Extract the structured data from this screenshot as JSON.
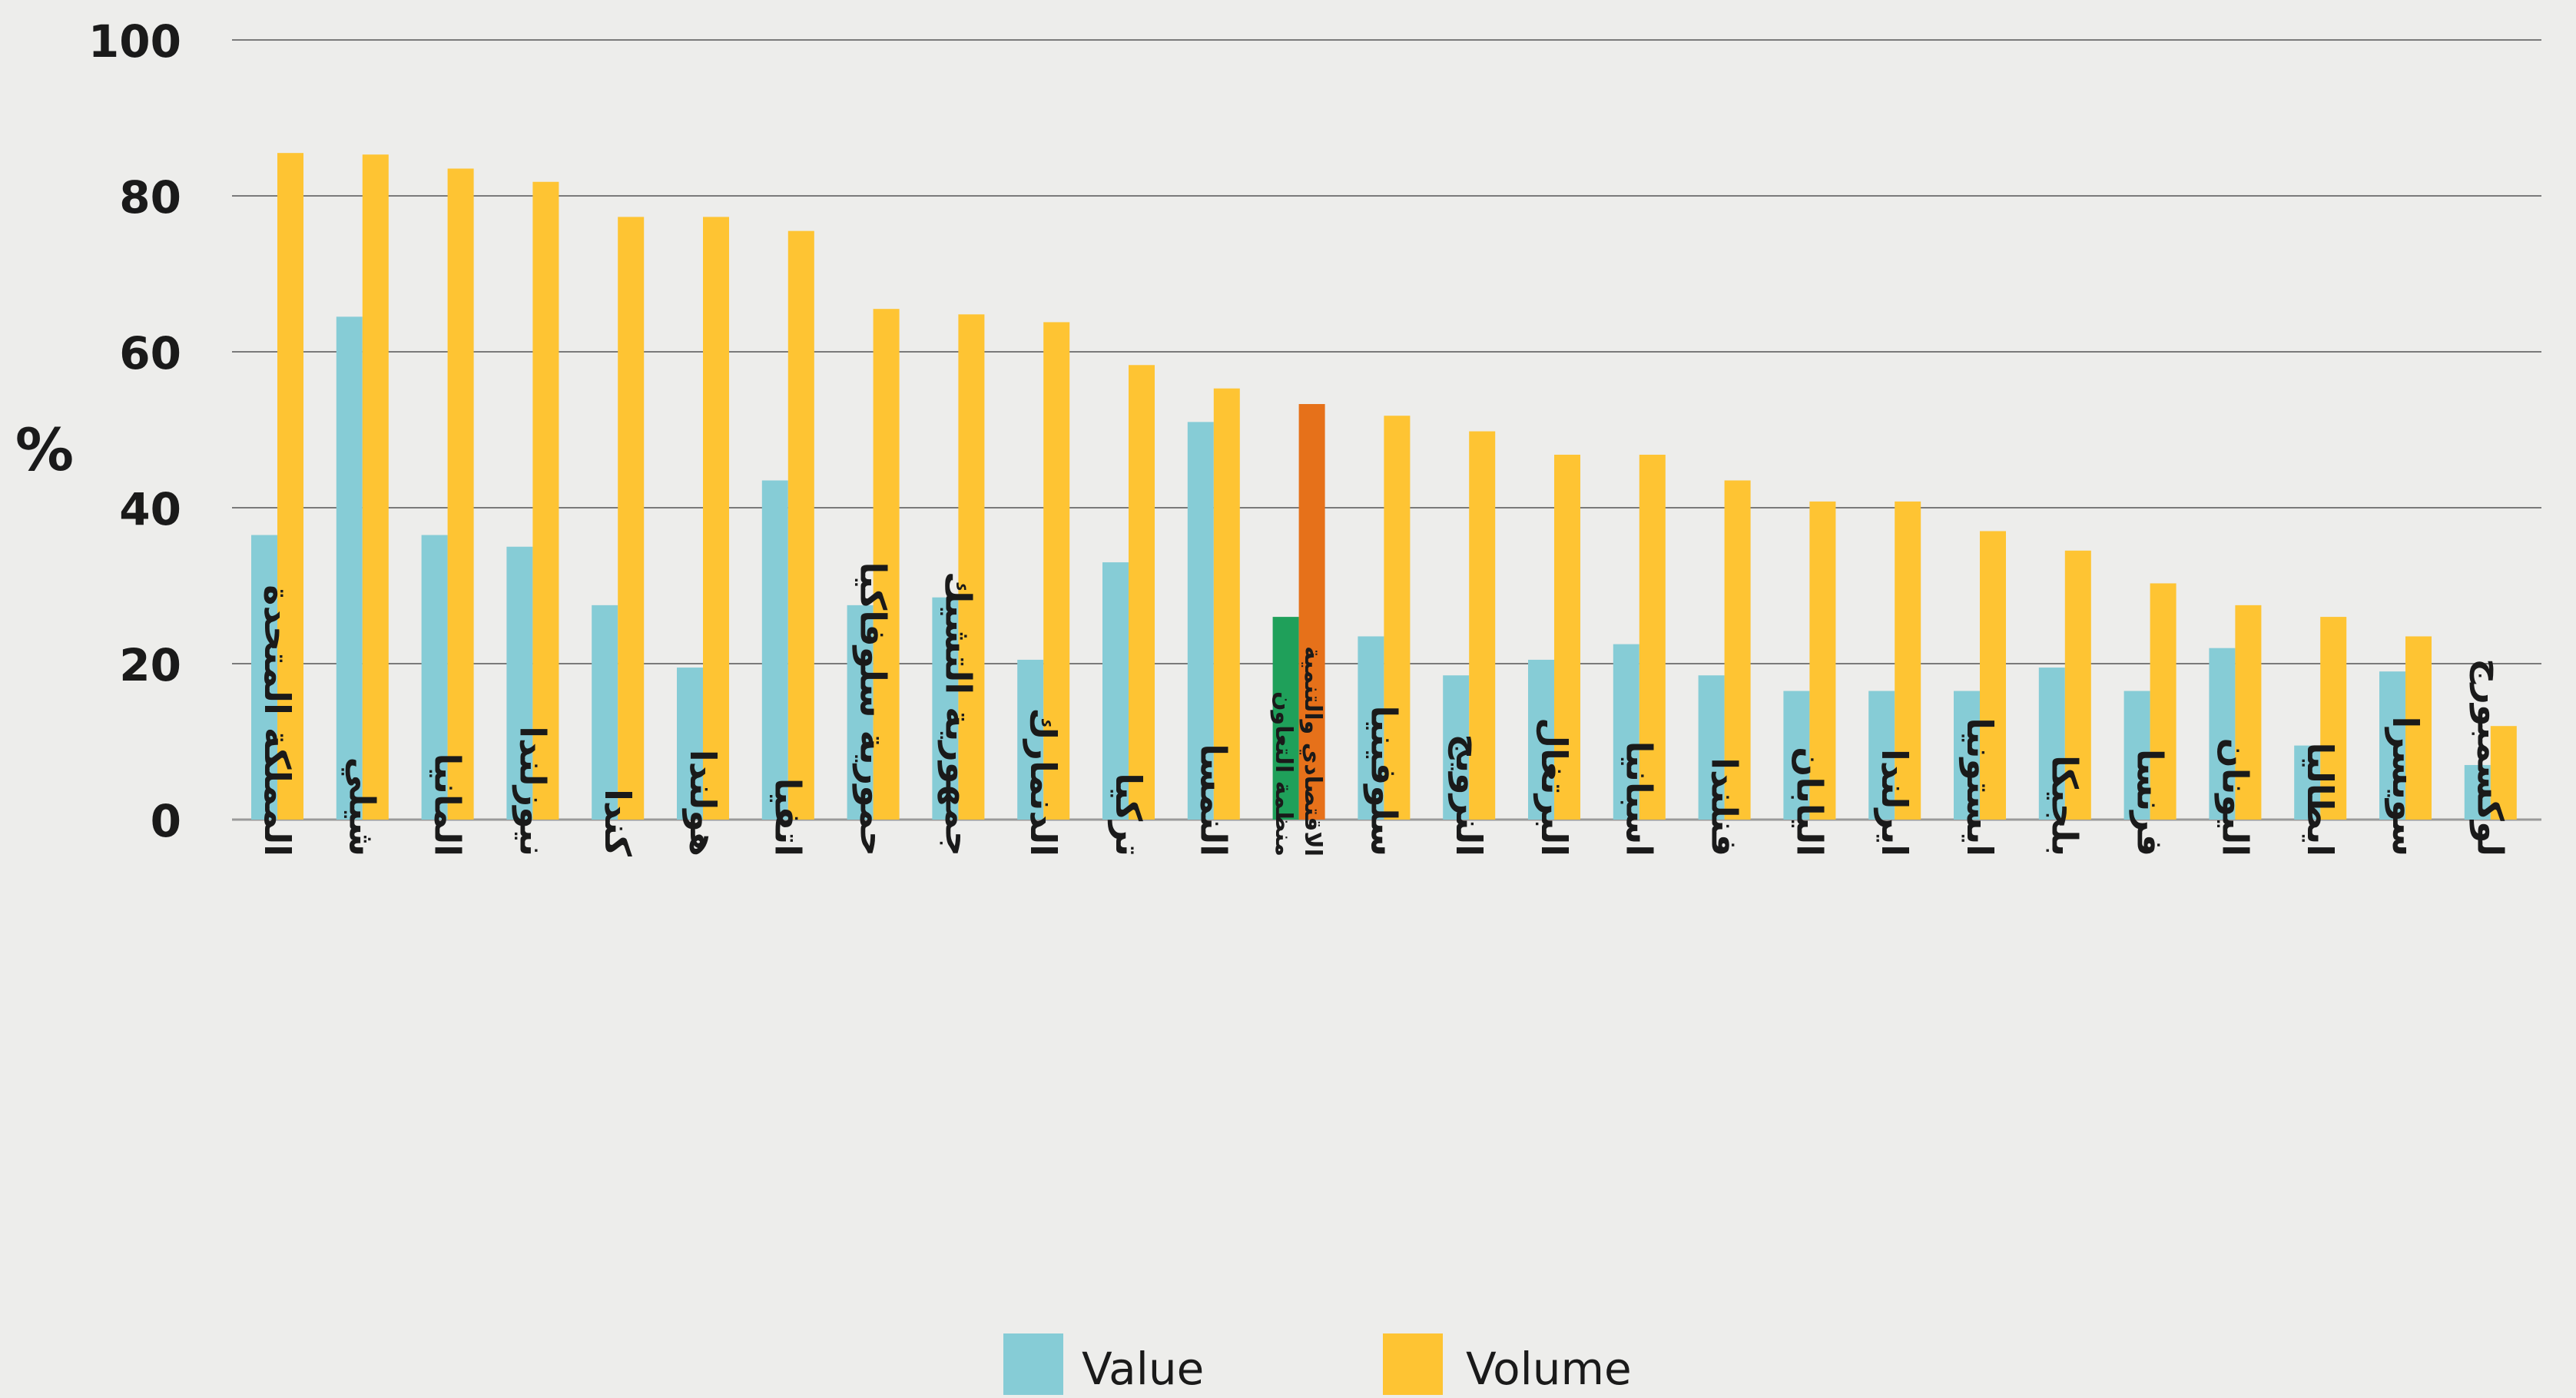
{
  "chart_data": {
    "type": "bar",
    "ylabel": "%",
    "ylim": [
      0,
      100
    ],
    "yticks": [
      0,
      20,
      40,
      60,
      80,
      100
    ],
    "grid": true,
    "legend_position": "bottom-center",
    "categories": [
      "المملكة المتحدة",
      "شيلي",
      "المانيا",
      "نيوزلندا",
      "كندا",
      "هولندا",
      "اتفيا",
      "حمورية سلوفاكيا",
      "جمهورية التشيك",
      "الدنمارك",
      "تركيا",
      "النمسا",
      "منظمة التعاون الاقتصادي والتنمية",
      "سلوفينيا",
      "النرويج",
      "البرتغال",
      "اسبانيا",
      "فنلندا",
      "اليابان",
      "ايرلندا",
      "ايستونيا",
      "بلجيكا",
      "فرنسا",
      "اليونان",
      "ايطاليا",
      "سويسرا",
      "لوكسمبورج"
    ],
    "category_lines": [
      [
        "المملكة المتحدة"
      ],
      [
        "شيلي"
      ],
      [
        "المانيا"
      ],
      [
        "نيوزلندا"
      ],
      [
        "كندا"
      ],
      [
        "هولندا"
      ],
      [
        "اتفيا"
      ],
      [
        "حمورية سلوفاكيا"
      ],
      [
        "جمهورية التشيك"
      ],
      [
        "الدنمارك"
      ],
      [
        "تركيا"
      ],
      [
        "النمسا"
      ],
      [
        "منظمة التعاون",
        "الاقتصادي والتنمية"
      ],
      [
        "سلوفينيا"
      ],
      [
        "النرويج"
      ],
      [
        "البرتغال"
      ],
      [
        "اسبانيا"
      ],
      [
        "فنلندا"
      ],
      [
        "اليابان"
      ],
      [
        "ايرلندا"
      ],
      [
        "ايستونيا"
      ],
      [
        "بلجيكا"
      ],
      [
        "فرنسا"
      ],
      [
        "اليونان"
      ],
      [
        "ايطاليا"
      ],
      [
        "سويسرا"
      ],
      [
        "لوكسمبورج"
      ]
    ],
    "highlight_index": 12,
    "series": [
      {
        "name": "Value",
        "color": "#86ccd6",
        "highlight_color": "#1fa05a",
        "values": [
          36.5,
          64.5,
          36.5,
          35,
          27.5,
          19.5,
          43.5,
          27.5,
          28.5,
          20.5,
          33,
          51,
          26,
          23.5,
          18.5,
          20.5,
          22.5,
          18.5,
          16.5,
          16.5,
          16.5,
          19.5,
          16.5,
          22,
          9.5,
          19,
          7
        ]
      },
      {
        "name": "Volume",
        "color": "#fec433",
        "highlight_color": "#e6711a",
        "values": [
          85.5,
          85.3,
          83.5,
          81.8,
          77.3,
          77.3,
          75.5,
          65.5,
          64.8,
          63.8,
          58.3,
          55.3,
          53.3,
          51.8,
          49.8,
          46.8,
          46.8,
          43.5,
          40.8,
          40.8,
          37,
          34.5,
          30.3,
          27.5,
          26,
          23.5,
          12
        ]
      }
    ]
  }
}
